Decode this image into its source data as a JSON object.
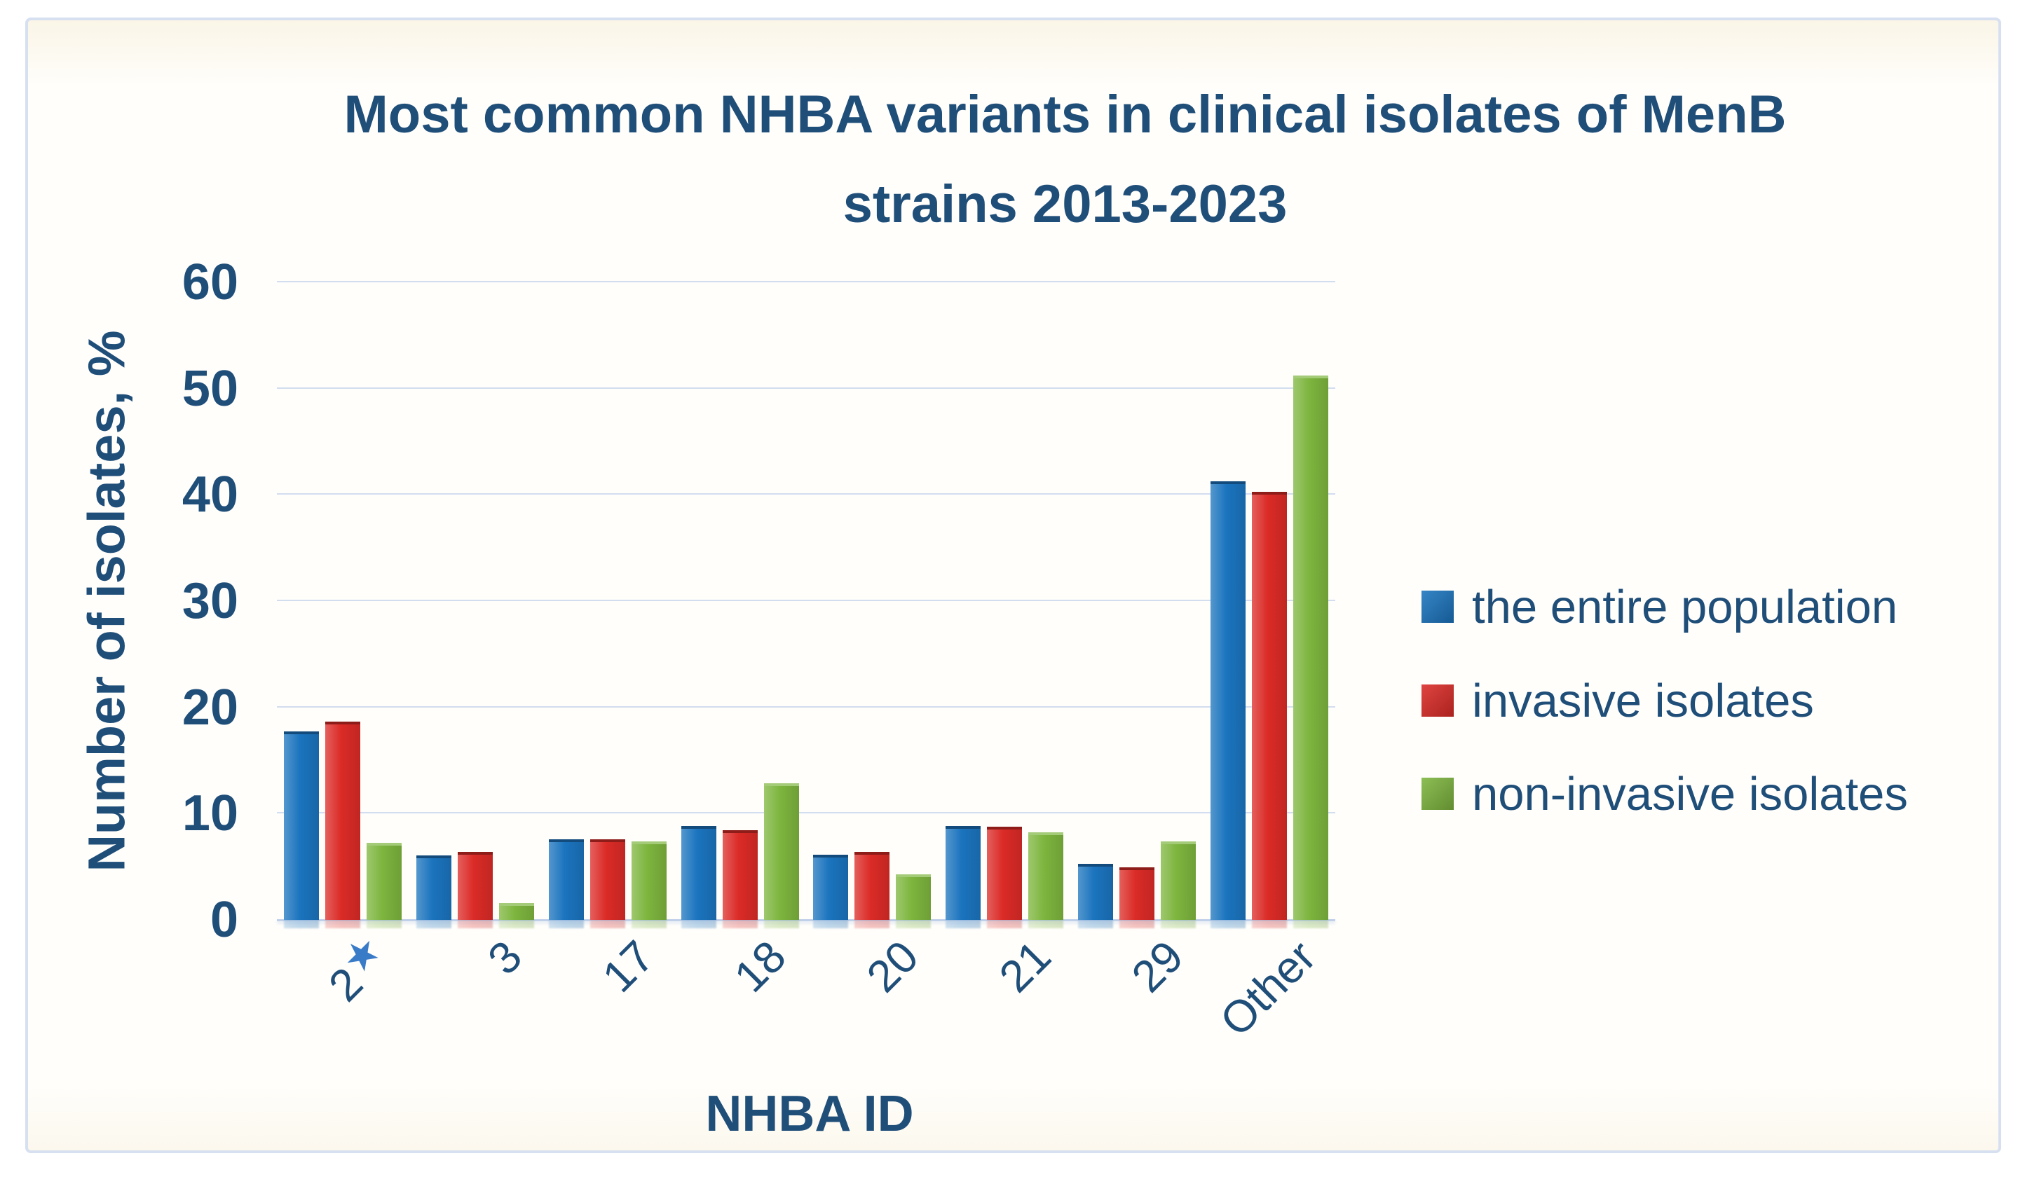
{
  "chart_data": {
    "type": "bar",
    "title": "Most common NHBA variants in clinical isolates of MenB strains 2013-2023",
    "title_lines": [
      "Most common NHBA variants in clinical isolates of MenB",
      "strains 2013-2023"
    ],
    "xlabel": "NHBA ID",
    "ylabel": "Number of isolates, %",
    "ylim": [
      0,
      60
    ],
    "yticks": [
      0,
      10,
      20,
      30,
      40,
      50,
      60
    ],
    "grid": true,
    "legend_position": "right",
    "categories": [
      "2",
      "3",
      "17",
      "18",
      "20",
      "21",
      "29",
      "Other"
    ],
    "starred_category": "2",
    "star_symbol": "★",
    "series": [
      {
        "name": "the entire population",
        "color": "#1b74be",
        "values": [
          17.5,
          5.8,
          7.3,
          8.6,
          5.9,
          8.6,
          5.0,
          41
        ]
      },
      {
        "name": "invasive isolates",
        "color": "#db2b27",
        "values": [
          18.4,
          6.1,
          7.3,
          8.2,
          6.1,
          8.5,
          4.7,
          40
        ]
      },
      {
        "name": "non-invasive isolates",
        "color": "#7db53e",
        "values": [
          7.0,
          1.3,
          7.1,
          12.6,
          4.0,
          8.0,
          7.1,
          51
        ]
      }
    ]
  },
  "colors": {
    "text": "#1f4e79",
    "gridline": "#d2ddef",
    "baseline": "#c0d0e9",
    "frame_border": "#d7e0f0",
    "star": "#3a7bc8"
  }
}
